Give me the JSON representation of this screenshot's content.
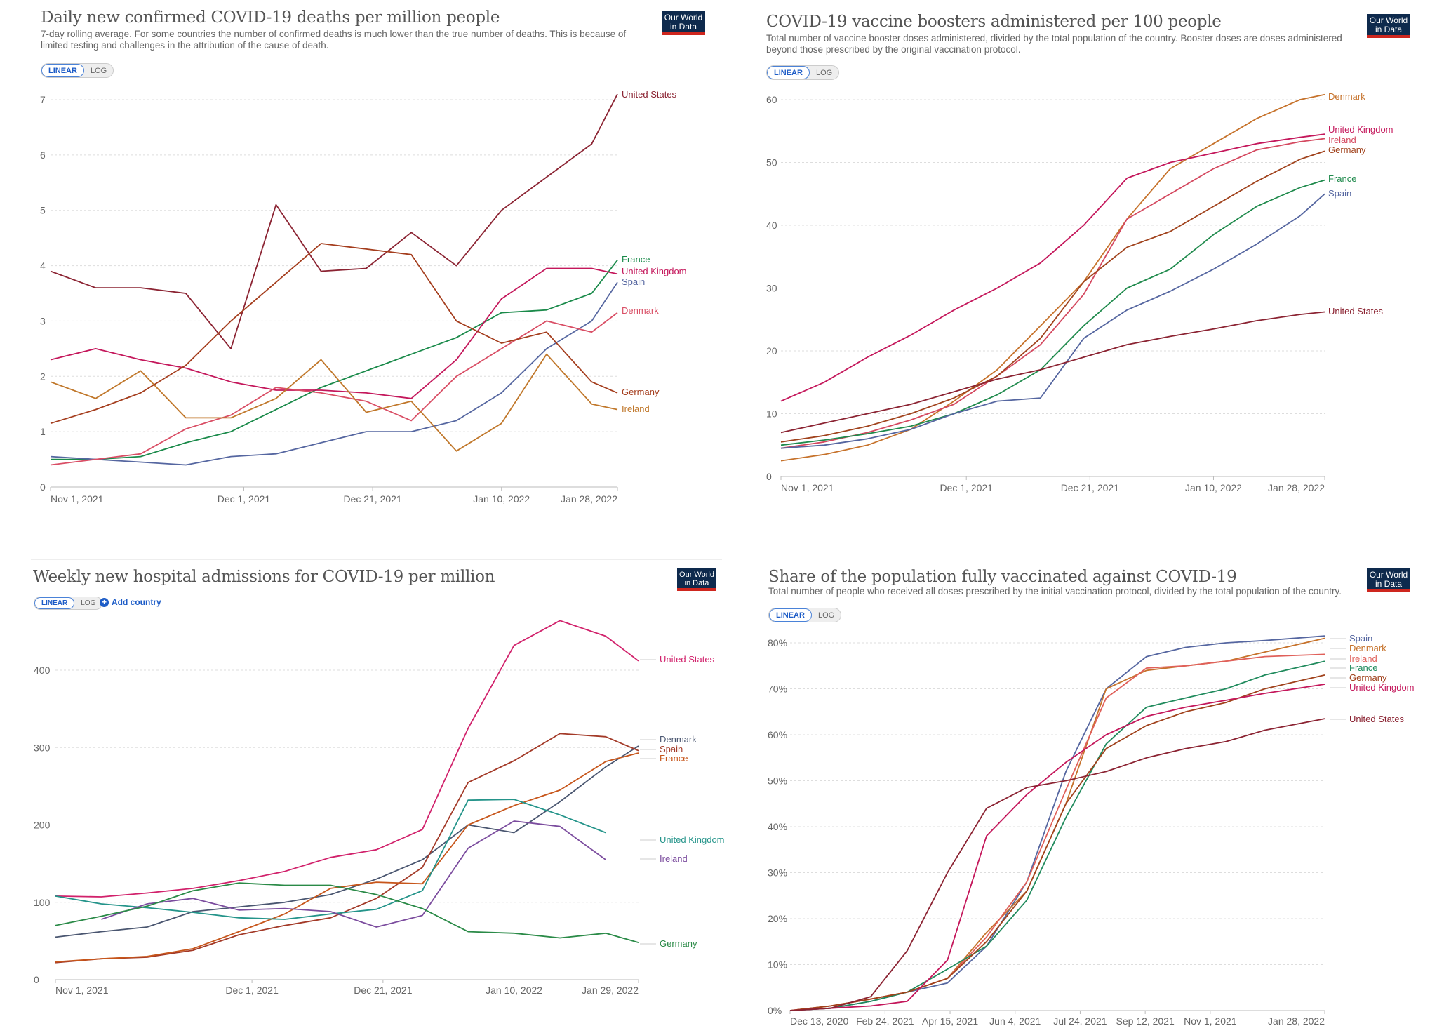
{
  "logo_text": "Our World in Data",
  "toggle": {
    "linear": "LINEAR",
    "log": "LOG"
  },
  "add_country": "Add country",
  "chart_data": [
    {
      "type": "line",
      "title": "Daily new confirmed COVID-19 deaths per million people",
      "subtitle": "7-day rolling average. For some countries the number of confirmed deaths is much lower than the true number of deaths. This is because of limited testing and challenges in the attribution of the cause of death.",
      "scale": "linear",
      "xlim": [
        "2021-11-01",
        "2022-01-28"
      ],
      "ylim": [
        0,
        7
      ],
      "y_ticks": [
        0,
        1,
        2,
        3,
        4,
        5,
        6,
        7
      ],
      "y_tick_suffix": "",
      "grid": "horizontal dashed",
      "x_ticks": [
        {
          "date": "2021-11-01",
          "label": "Nov 1, 2021"
        },
        {
          "date": "2021-12-01",
          "label": "Dec 1, 2021"
        },
        {
          "date": "2021-12-21",
          "label": "Dec 21, 2021"
        },
        {
          "date": "2022-01-10",
          "label": "Jan 10, 2022"
        },
        {
          "date": "2022-01-28",
          "label": "Jan 28, 2022"
        }
      ],
      "x": [
        "2021-11-01",
        "2021-11-08",
        "2021-11-15",
        "2021-11-22",
        "2021-11-29",
        "2021-12-06",
        "2021-12-13",
        "2021-12-20",
        "2021-12-27",
        "2022-01-03",
        "2022-01-10",
        "2022-01-17",
        "2022-01-24",
        "2022-01-28"
      ],
      "series": [
        {
          "name": "United States",
          "color": "#8b2332",
          "values": [
            3.9,
            3.6,
            3.6,
            3.5,
            2.5,
            5.1,
            3.9,
            3.95,
            4.6,
            4.0,
            5.0,
            5.6,
            6.2,
            7.1
          ]
        },
        {
          "name": "France",
          "color": "#1a8a4a",
          "values": [
            0.5,
            0.5,
            0.55,
            0.8,
            1.0,
            1.4,
            1.8,
            2.1,
            2.4,
            2.7,
            3.15,
            3.2,
            3.5,
            4.1
          ]
        },
        {
          "name": "United Kingdom",
          "color": "#c4175b",
          "values": [
            2.3,
            2.5,
            2.3,
            2.15,
            1.9,
            1.75,
            1.75,
            1.7,
            1.6,
            2.3,
            3.4,
            3.95,
            3.95,
            3.85
          ]
        },
        {
          "name": "Spain",
          "color": "#5566a0",
          "values": [
            0.55,
            0.5,
            0.45,
            0.4,
            0.55,
            0.6,
            0.8,
            1.0,
            1.0,
            1.2,
            1.7,
            2.5,
            3.0,
            3.7
          ]
        },
        {
          "name": "Denmark",
          "color": "#d94e65",
          "values": [
            0.4,
            0.5,
            0.6,
            1.05,
            1.3,
            1.8,
            1.7,
            1.55,
            1.2,
            2.0,
            2.5,
            3.0,
            2.8,
            3.15
          ]
        },
        {
          "name": "Germany",
          "color": "#a43d1d",
          "values": [
            1.15,
            1.4,
            1.7,
            2.2,
            3.0,
            3.7,
            4.4,
            4.3,
            4.2,
            3.0,
            2.6,
            2.8,
            1.9,
            1.7
          ]
        },
        {
          "name": "Ireland",
          "color": "#c0772a",
          "values": [
            1.9,
            1.6,
            2.1,
            1.25,
            1.25,
            1.6,
            2.3,
            1.35,
            1.55,
            0.65,
            1.15,
            2.4,
            1.5,
            1.4
          ]
        }
      ]
    },
    {
      "type": "line",
      "title": "COVID-19 vaccine boosters administered per 100 people",
      "subtitle": "Total number of vaccine booster doses administered, divided by the total population of the country. Booster doses are doses administered beyond those prescribed by the original vaccination protocol.",
      "scale": "linear",
      "xlim": [
        "2021-11-01",
        "2022-01-28"
      ],
      "ylim": [
        0,
        60
      ],
      "y_ticks": [
        0,
        10,
        20,
        30,
        40,
        50,
        60
      ],
      "y_tick_suffix": "",
      "grid": "horizontal dashed",
      "x_ticks": [
        {
          "date": "2021-11-01",
          "label": "Nov 1, 2021"
        },
        {
          "date": "2021-12-01",
          "label": "Dec 1, 2021"
        },
        {
          "date": "2021-12-21",
          "label": "Dec 21, 2021"
        },
        {
          "date": "2022-01-10",
          "label": "Jan 10, 2022"
        },
        {
          "date": "2022-01-28",
          "label": "Jan 28, 2022"
        }
      ],
      "x": [
        "2021-11-01",
        "2021-11-08",
        "2021-11-15",
        "2021-11-22",
        "2021-11-29",
        "2021-12-06",
        "2021-12-13",
        "2021-12-20",
        "2021-12-27",
        "2022-01-03",
        "2022-01-10",
        "2022-01-17",
        "2022-01-24",
        "2022-01-28"
      ],
      "series": [
        {
          "name": "Denmark",
          "color": "#c6722b",
          "values": [
            2.5,
            3.5,
            5,
            7.5,
            12,
            17,
            24,
            31,
            41,
            49,
            53,
            57,
            60,
            60.8
          ]
        },
        {
          "name": "United Kingdom",
          "color": "#c4175b",
          "values": [
            12,
            15,
            19,
            22.5,
            26.5,
            30,
            34,
            40,
            47.5,
            50,
            51.5,
            53,
            54,
            54.5
          ]
        },
        {
          "name": "Ireland",
          "color": "#d4485f",
          "values": [
            4.5,
            5.5,
            7,
            9,
            11.5,
            16,
            21,
            29,
            41,
            45,
            49,
            52,
            53.3,
            53.8
          ]
        },
        {
          "name": "Germany",
          "color": "#a0421c",
          "values": [
            5.5,
            6.5,
            8,
            10,
            12.5,
            16,
            22,
            31,
            36.5,
            39,
            43,
            47,
            50.5,
            51.8
          ]
        },
        {
          "name": "France",
          "color": "#1f8a4c",
          "values": [
            5,
            5.8,
            6.8,
            8,
            10,
            13,
            17,
            24,
            30,
            33,
            38.5,
            43,
            46,
            47.2
          ]
        },
        {
          "name": "Spain",
          "color": "#5566a0",
          "values": [
            4.5,
            5,
            6,
            7.5,
            10,
            12,
            12.5,
            22,
            26.5,
            29.5,
            33,
            37,
            41.5,
            45
          ]
        },
        {
          "name": "United States",
          "color": "#8b2332",
          "values": [
            7,
            8.5,
            10,
            11.5,
            13.5,
            15.5,
            17,
            19,
            21,
            22.3,
            23.5,
            24.8,
            25.8,
            26.2
          ]
        }
      ]
    },
    {
      "type": "line",
      "title": "Weekly new hospital admissions for COVID-19 per million",
      "subtitle": "",
      "scale": "linear",
      "xlim": [
        "2021-11-01",
        "2022-01-29"
      ],
      "ylim": [
        0,
        400
      ],
      "y_ticks": [
        0,
        100,
        200,
        300,
        400
      ],
      "y_tick_suffix": "",
      "grid": "horizontal dashed",
      "x_ticks": [
        {
          "date": "2021-11-01",
          "label": "Nov 1, 2021"
        },
        {
          "date": "2021-12-01",
          "label": "Dec 1, 2021"
        },
        {
          "date": "2021-12-21",
          "label": "Dec 21, 2021"
        },
        {
          "date": "2022-01-10",
          "label": "Jan 10, 2022"
        },
        {
          "date": "2022-01-29",
          "label": "Jan 29, 2022"
        }
      ],
      "x": [
        "2021-11-01",
        "2021-11-08",
        "2021-11-15",
        "2021-11-22",
        "2021-11-29",
        "2021-12-06",
        "2021-12-13",
        "2021-12-20",
        "2021-12-27",
        "2022-01-03",
        "2022-01-10",
        "2022-01-17",
        "2022-01-24",
        "2022-01-29"
      ],
      "series": [
        {
          "name": "United States",
          "color": "#d1216b",
          "values": [
            108,
            107,
            112,
            118,
            128,
            140,
            158,
            168,
            194,
            325,
            432,
            464,
            444,
            412
          ]
        },
        {
          "name": "Denmark",
          "color": "#4a5670",
          "values": [
            55,
            62,
            68,
            88,
            94,
            100,
            110,
            130,
            155,
            200,
            190,
            230,
            275,
            302
          ]
        },
        {
          "name": "Spain",
          "color": "#a33a28",
          "values": [
            22,
            27,
            29,
            38,
            58,
            70,
            80,
            105,
            145,
            255,
            283,
            318,
            314,
            296
          ]
        },
        {
          "name": "France",
          "color": "#c7561b",
          "values": [
            23,
            27,
            30,
            40,
            62,
            85,
            118,
            126,
            124,
            200,
            225,
            245,
            282,
            293
          ]
        },
        {
          "name": "United Kingdom",
          "color": "#24948a",
          "values": [
            108,
            98,
            93,
            87,
            80,
            78,
            85,
            91,
            115,
            232,
            233,
            213,
            190,
            null
          ]
        },
        {
          "name": "Ireland",
          "color": "#7b4c9e",
          "values": [
            null,
            78,
            98,
            105,
            90,
            92,
            88,
            68,
            83,
            170,
            205,
            198,
            155,
            null
          ]
        },
        {
          "name": "Germany",
          "color": "#2a8a47",
          "values": [
            70,
            82,
            95,
            115,
            125,
            122,
            122,
            110,
            92,
            62,
            60,
            54,
            60,
            48
          ]
        }
      ]
    },
    {
      "type": "line",
      "title": "Share of the population fully vaccinated against COVID-19",
      "subtitle": "Total number of people who received all doses prescribed by the initial vaccination protocol, divided by the total population of the country.",
      "scale": "linear",
      "xlim": [
        "2020-12-13",
        "2022-01-28"
      ],
      "ylim": [
        0,
        80
      ],
      "y_ticks": [
        0,
        10,
        20,
        30,
        40,
        50,
        60,
        70,
        80
      ],
      "y_tick_suffix": "%",
      "grid": "horizontal dashed",
      "x_ticks": [
        {
          "date": "2020-12-13",
          "label": "Dec 13, 2020"
        },
        {
          "date": "2021-02-24",
          "label": "Feb 24, 2021"
        },
        {
          "date": "2021-04-15",
          "label": "Apr 15, 2021"
        },
        {
          "date": "2021-06-04",
          "label": "Jun 4, 2021"
        },
        {
          "date": "2021-07-24",
          "label": "Jul 24, 2021"
        },
        {
          "date": "2021-09-12",
          "label": "Sep 12, 2021"
        },
        {
          "date": "2021-11-01",
          "label": "Nov 1, 2021"
        },
        {
          "date": "2022-01-28",
          "label": "Jan 28, 2022"
        }
      ],
      "x": [
        "2020-12-13",
        "2021-01-13",
        "2021-02-13",
        "2021-03-13",
        "2021-04-13",
        "2021-05-13",
        "2021-06-13",
        "2021-07-13",
        "2021-08-13",
        "2021-09-13",
        "2021-10-13",
        "2021-11-13",
        "2021-12-13",
        "2022-01-28"
      ],
      "series": [
        {
          "name": "Spain",
          "color": "#5566a0",
          "values": [
            0,
            0.5,
            2,
            4,
            6,
            14,
            28,
            52,
            70,
            77,
            79,
            80,
            80.5,
            81.5
          ]
        },
        {
          "name": "Denmark",
          "color": "#c6722b",
          "values": [
            0,
            1,
            2.5,
            4,
            7,
            17,
            26,
            45,
            70,
            74,
            75,
            76,
            78,
            81
          ]
        },
        {
          "name": "Ireland",
          "color": "#e0605a",
          "values": [
            0,
            1,
            2.5,
            4,
            7,
            16,
            28,
            48,
            68,
            74.5,
            75,
            76,
            77,
            77.5
          ]
        },
        {
          "name": "France",
          "color": "#1f8a5c",
          "values": [
            0,
            0.5,
            2,
            4,
            9,
            14,
            24,
            42,
            58,
            66,
            68,
            70,
            73,
            76
          ]
        },
        {
          "name": "Germany",
          "color": "#a0421c",
          "values": [
            0,
            1,
            2.5,
            4,
            7,
            15,
            26,
            45,
            57,
            62,
            65,
            67,
            70,
            73
          ]
        },
        {
          "name": "United Kingdom",
          "color": "#c4175b",
          "values": [
            0,
            0.5,
            1,
            2,
            11,
            38,
            47,
            54,
            60,
            64,
            66,
            67.5,
            69,
            71
          ]
        },
        {
          "name": "United States",
          "color": "#8b2332",
          "values": [
            0,
            0.5,
            3,
            13,
            30,
            44,
            48.5,
            50,
            52,
            55,
            57,
            58.5,
            61,
            63.5
          ]
        }
      ]
    }
  ]
}
